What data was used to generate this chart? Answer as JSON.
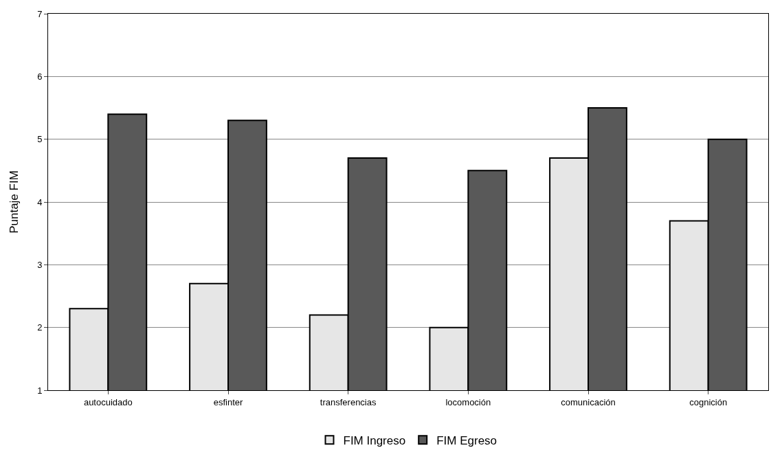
{
  "chart_data": {
    "type": "bar",
    "ylabel": "Puntaje FIM",
    "categories": [
      "autocuidado",
      "esfinter",
      "transferencias",
      "locomoción",
      "comunicación",
      "cognición"
    ],
    "series": [
      {
        "name": "FIM Ingreso",
        "color": "#e6e6e6",
        "values": [
          2.3,
          2.7,
          2.2,
          2.0,
          4.7,
          3.7
        ]
      },
      {
        "name": "FIM Egreso",
        "color": "#595959",
        "values": [
          5.4,
          5.3,
          4.7,
          4.5,
          5.5,
          5.0
        ]
      }
    ],
    "ylim": [
      1,
      7
    ],
    "yticks": [
      1,
      2,
      3,
      4,
      5,
      6,
      7
    ],
    "grid": "y",
    "legend": "bottom"
  }
}
